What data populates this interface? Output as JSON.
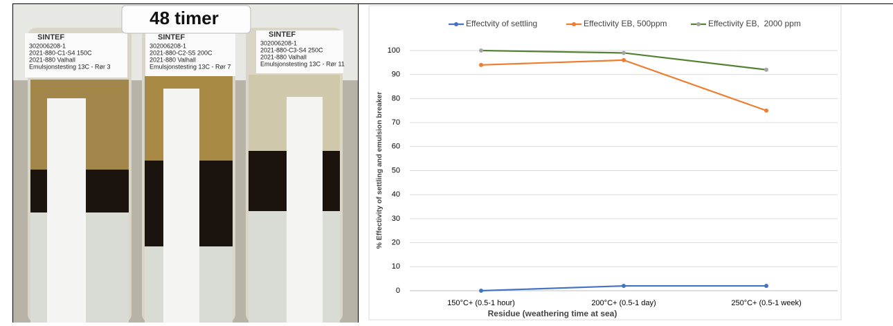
{
  "photo": {
    "tag": "48 timer",
    "bottles": [
      {
        "brand": "SINTEF",
        "lines": [
          "302006208-1",
          "2021-880-C1-S4 150C",
          "2021-880  Valhall",
          "Emulsjonstesting 13C - Rør 3"
        ]
      },
      {
        "brand": "SINTEF",
        "lines": [
          "302006208-1",
          "2021-880-C2-S5 200C",
          "2021-880  Valhall",
          "Emulsjonstesting 13C - Rør 7"
        ]
      },
      {
        "brand": "SINTEF",
        "lines": [
          "302006208-1",
          "2021-880-C3-S4 250C",
          "2021-880  Valhall",
          "Emulsjonstesting 13C - Rør 11"
        ]
      }
    ]
  },
  "chart_data": {
    "type": "line",
    "x_label": "Residue (weathering time at sea)",
    "y_label": "% Effectivity of settling and emulsion breaker",
    "categories": [
      "150°C+ (0.5-1 hour)",
      "200°C+ (0.5-1 day)",
      "250°C+ (0.5-1 week)"
    ],
    "series": [
      {
        "name": "Effectvity of settling",
        "color": "#4472c4",
        "values": [
          0,
          2,
          2
        ]
      },
      {
        "name": "Effectivity EB, 500ppm",
        "color": "#ed7d31",
        "values": [
          94,
          96,
          75
        ]
      },
      {
        "name": "Effectivity EB,  2000 ppm",
        "color": "#548235",
        "marker_color": "#a5a5a5",
        "values": [
          100,
          99,
          92
        ]
      }
    ],
    "ylim": [
      0,
      100
    ],
    "yticks": [
      0,
      10,
      20,
      30,
      40,
      50,
      60,
      70,
      80,
      90,
      100
    ],
    "grid": true,
    "legend": "top"
  }
}
